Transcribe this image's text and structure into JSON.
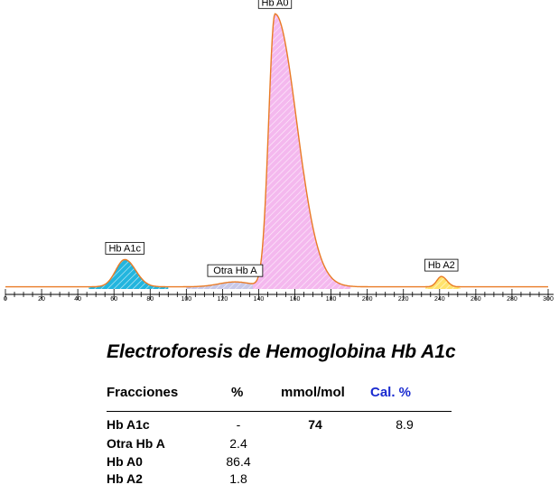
{
  "chart_data": {
    "type": "area",
    "x_ticks": [
      0,
      20,
      40,
      60,
      80,
      100,
      120,
      140,
      160,
      180,
      200,
      220,
      240,
      260,
      280,
      300
    ],
    "xlim": [
      0,
      300
    ],
    "grid": false,
    "peaks": [
      {
        "label": "Hb A1c",
        "center": 66,
        "height": 0.1,
        "width_left": 5,
        "width_right": 6,
        "fill": "#22b5de"
      },
      {
        "label": "Otra Hb A",
        "center": 127,
        "height": 0.018,
        "width_left": 9,
        "width_right": 9,
        "fill": "#c8c8e8"
      },
      {
        "label": "Hb A0",
        "center": 149,
        "height": 1.0,
        "width_left": 3.5,
        "width_right": 12,
        "fill": "#f4b8ee"
      },
      {
        "label": "Hb A2",
        "center": 241,
        "height": 0.038,
        "width_left": 2.5,
        "width_right": 3,
        "fill": "#ffe36c"
      }
    ],
    "baseline": 0.008,
    "colors": {
      "curve": "#e97b25",
      "axis": "#000000"
    }
  },
  "report": {
    "title": "Electroforesis de Hemoglobina Hb A1c",
    "headers": {
      "fraction": "Fracciones",
      "percent": "%",
      "mmol": "mmol/mol",
      "cal": "Cal. %"
    },
    "header_colors": {
      "cal": "#1a2bd0"
    },
    "rows": [
      {
        "name": "Hb A1c",
        "percent": "-",
        "mmol": "74",
        "cal": "8.9"
      },
      {
        "name": "Otra Hb A",
        "percent": "2.4",
        "mmol": "",
        "cal": ""
      },
      {
        "name": "Hb A0",
        "percent": "86.4",
        "mmol": "",
        "cal": ""
      },
      {
        "name": "Hb A2",
        "percent": "1.8",
        "mmol": "",
        "cal": ""
      }
    ]
  }
}
